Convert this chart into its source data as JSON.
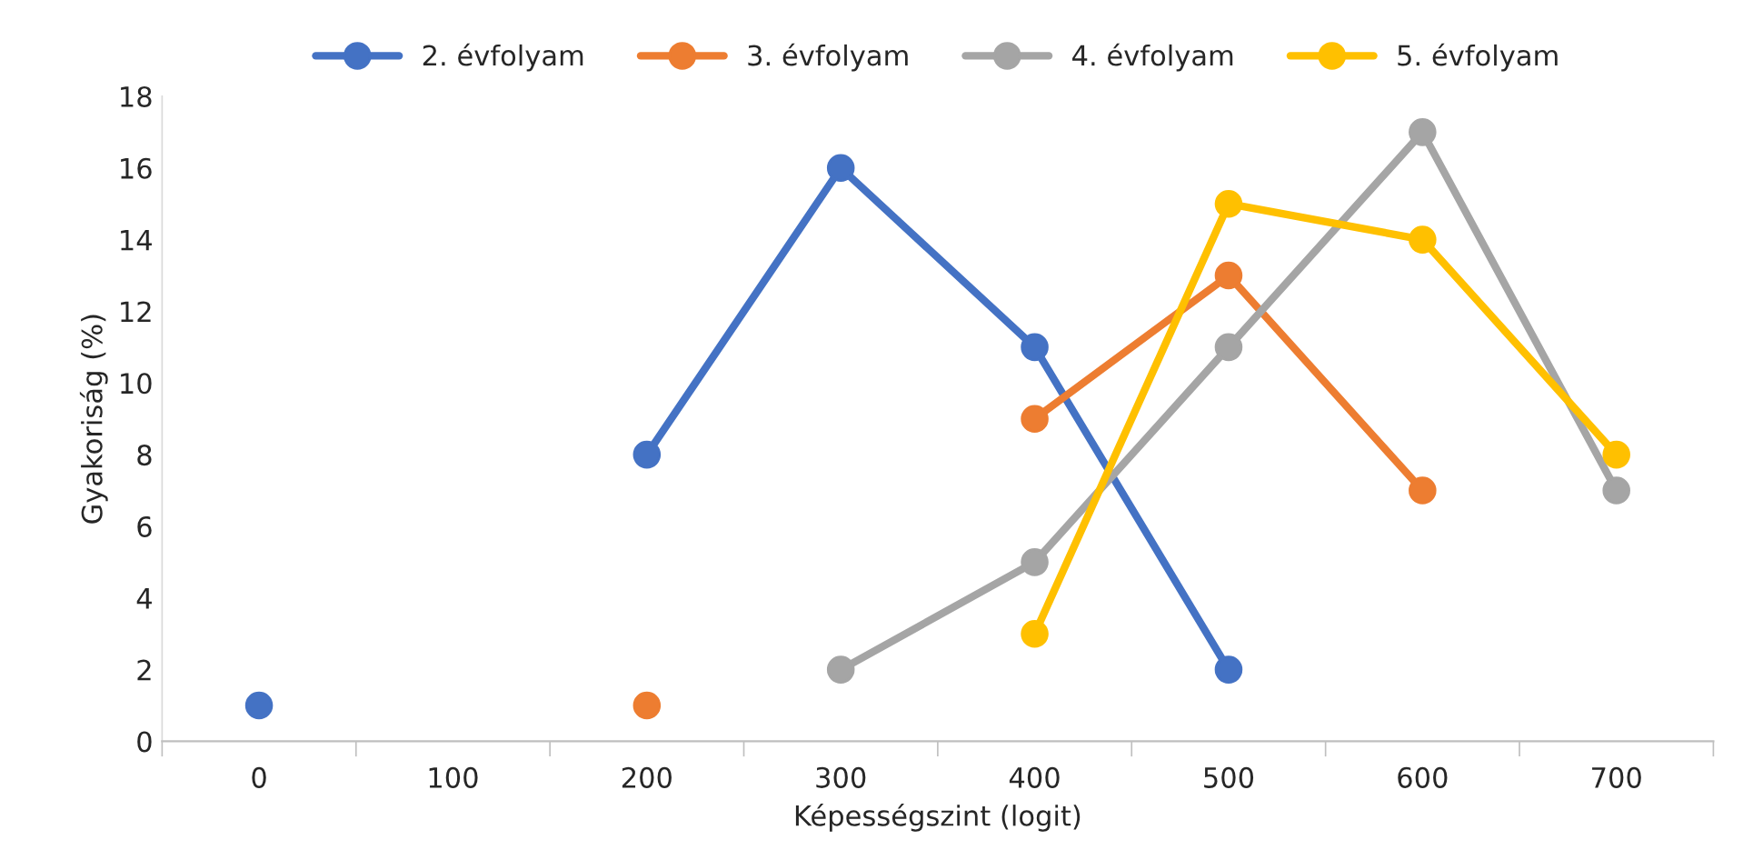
{
  "chart_data": {
    "type": "line",
    "xlabel": "Képességszint (logit)",
    "ylabel": "Gyakoriság (%)",
    "categories": [
      "0",
      "100",
      "200",
      "300",
      "400",
      "500",
      "600",
      "700"
    ],
    "series": [
      {
        "name": "2. évfolyam",
        "color": "#4472c4",
        "values": [
          1,
          null,
          8,
          16,
          11,
          2,
          null,
          null
        ]
      },
      {
        "name": "3. évfolyam",
        "color": "#ed7d31",
        "values": [
          null,
          null,
          1,
          null,
          9,
          13,
          7,
          null
        ]
      },
      {
        "name": "4. évfolyam",
        "color": "#a5a5a5",
        "values": [
          null,
          null,
          null,
          2,
          5,
          11,
          17,
          7
        ]
      },
      {
        "name": "5. évfolyam",
        "color": "#ffc000",
        "values": [
          null,
          null,
          null,
          null,
          3,
          15,
          14,
          8
        ]
      }
    ],
    "ylim": [
      0,
      18
    ],
    "yticks": [
      0,
      2,
      4,
      6,
      8,
      10,
      12,
      14,
      16,
      18
    ],
    "grid": false,
    "legend": "top",
    "marker": "circle",
    "line_style": "solid"
  }
}
